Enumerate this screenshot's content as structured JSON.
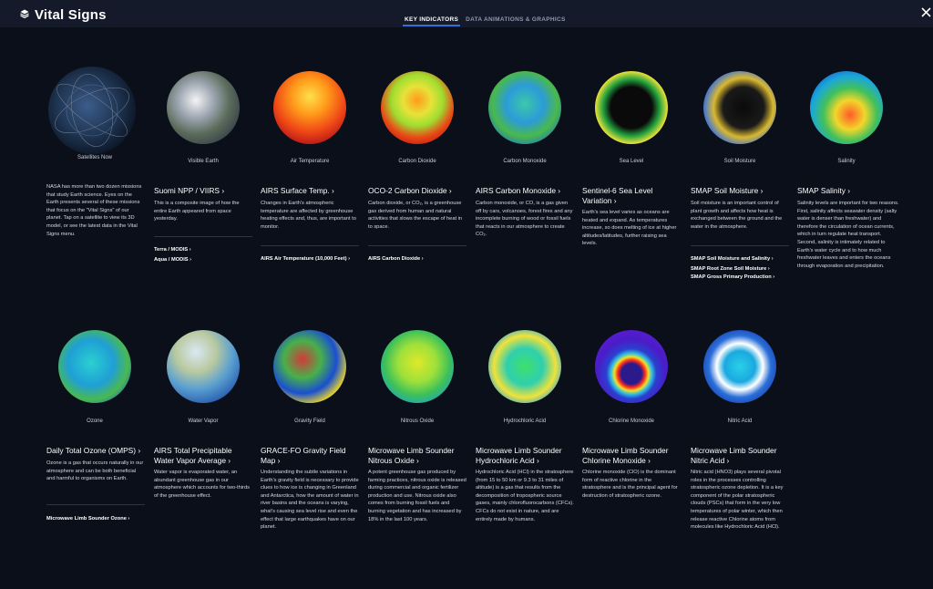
{
  "header": {
    "title": "Vital Signs",
    "tabs": [
      {
        "label": "KEY INDICATORS",
        "active": true
      },
      {
        "label": "DATA ANIMATIONS & GRAPHICS",
        "active": false
      }
    ]
  },
  "colors": {
    "background": "#0b0f19",
    "topbar": "#141a29",
    "accent": "#2f6fd6"
  },
  "row1": [
    {
      "label": "Satellites Now",
      "heading": "",
      "description": "NASA has more than two dozen missions that study Earth science. Eyes on the Earth presents several of these missions that focus on the \"Vital Signs\" of our planet. Tap on a satellite to view its 3D model, or see the latest data in the Vital Signs menu.",
      "links": []
    },
    {
      "label": "Visible Earth",
      "heading": "Suomi NPP / VIIRS ›",
      "description": "This is a composite image of how the entire Earth appeared from space yesterday.",
      "links": [
        "Terra / MODIS ›",
        "Aqua / MODIS ›"
      ]
    },
    {
      "label": "Air Temperature",
      "heading": "AIRS Surface Temp. ›",
      "description": "Changes in Earth's atmospheric temperature are affected by greenhouse heating effects and, thus, are important to monitor.",
      "links": [
        "AIRS Air Temperature (10,000 Feet) ›"
      ]
    },
    {
      "label": "Carbon Dioxide",
      "heading": "OCO-2 Carbon Dioxide ›",
      "description": "Carbon dioxide, or CO₂, is a greenhouse gas derived from human and natural activities that slows the escape of heat in to space.",
      "links": [
        "AIRS Carbon Dioxide ›"
      ]
    },
    {
      "label": "Carbon Monoxide",
      "heading": "AIRS Carbon Monoxide ›",
      "description": "Carbon monoxide, or CO, is a gas given off by cars, volcanoes, forest fires and any incomplete burning of wood or fossil fuels that reacts in our atmosphere to create CO₂.",
      "links": []
    },
    {
      "label": "Sea Level",
      "heading": "Sentinel-6 Sea Level Variation ›",
      "description": "Earth's sea level varies as oceans are heated and expand. As temperatures increase, so does melting of ice at higher altitudes/latitudes, further raising sea levels.",
      "links": []
    },
    {
      "label": "Soil Moisture",
      "heading": "SMAP Soil Moisture ›",
      "description": "Soil moisture is an important control of plant growth and affects how heat is exchanged between the ground and the water in the atmosphere.",
      "links": [
        "SMAP Soil Moisture and Salinity ›",
        "SMAP Root Zone Soil Moisture ›",
        "SMAP Gross Primary Production ›"
      ]
    },
    {
      "label": "Salinity",
      "heading": "SMAP Salinity ›",
      "description": "Salinity levels are important for two reasons. First, salinity affects seawater density (salty water is denser than freshwater) and therefore the circulation of ocean currents, which in turn regulate heat transport. Second, salinity is intimately related to Earth's water cycle and to how much freshwater leaves and enters the oceans through evaporation and precipitation.",
      "links": []
    }
  ],
  "row2": [
    {
      "label": "Ozone",
      "heading": "Daily Total Ozone (OMPS) ›",
      "description": "Ozone is a gas that occurs naturally in our atmosphere and can be both beneficial and harmful to organisms on Earth.",
      "links": [
        "Microwave Limb Sounder Ozone ›"
      ]
    },
    {
      "label": "Water Vapor",
      "heading": "AIRS Total Precipitable Water Vapor Average ›",
      "description": "Water vapor is evaporated water, an abundant greenhouse gas in our atmosphere which accounts for two-thirds of the greenhouse effect.",
      "links": []
    },
    {
      "label": "Gravity Field",
      "heading": "GRACE-FO Gravity Field Map ›",
      "description": "Understanding the subtle variations in Earth's gravity field is necessary to provide clues to how ice is changing in Greenland and Antarctica, how the amount of water in river basins and the oceans is varying, what's causing sea level rise and even the effect that large earthquakes have on our planet.",
      "links": []
    },
    {
      "label": "Nitrous Oxide",
      "heading": "Microwave Limb Sounder Nitrous Oxide ›",
      "description": "A potent greenhouse gas produced by farming practices, nitrous oxide is released during commercial and organic fertilizer production and use. Nitrous oxide also comes from burning fossil fuels and burning vegetation and has increased by 18% in the last 100 years.",
      "links": []
    },
    {
      "label": "Hydrochloric Acid",
      "heading": "Microwave Limb Sounder Hydrochloric Acid ›",
      "description": "Hydrochloric Acid (HCl) in the stratosphere (from 15 to 50 km or 9.3 to 31 miles of altitude) is a gas that results from the decomposition of tropospheric source gases, mainly chlorofluorocarbons (CFCs). CFCs do not exist in nature, and are entirely made by humans.",
      "links": []
    },
    {
      "label": "Chlorine Monoxide",
      "heading": "Microwave Limb Sounder Chlorine Monoxide ›",
      "description": "Chlorine monoxide (ClO) is the dominant form of reactive chlorine in the stratosphere and is the principal agent for destruction of stratospheric ozone.",
      "links": []
    },
    {
      "label": "Nitric Acid",
      "heading": "Microwave Limb Sounder Nitric Acid ›",
      "description": "Nitric acid (HNO3) plays several pivotal roles in the processes controlling stratospheric ozone depletion. It is a key component of the polar stratospheric clouds (PSCs) that form in the very low temperatures of polar winter, which then release reactive Chlorine atoms from molecules like Hydrochloric Acid (HCl).",
      "links": []
    }
  ]
}
